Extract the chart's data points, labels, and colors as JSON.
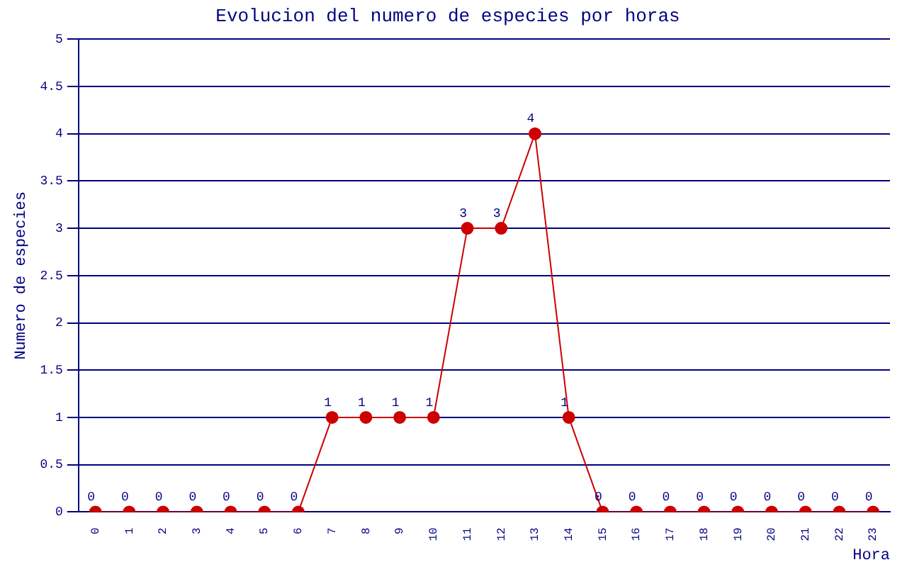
{
  "chart_data": {
    "type": "line",
    "title": "Evolucion del numero de especies por horas",
    "xlabel": "Hora",
    "ylabel": "Numero de especies",
    "categories": [
      "0",
      "1",
      "2",
      "3",
      "4",
      "5",
      "6",
      "7",
      "8",
      "9",
      "10",
      "11",
      "12",
      "13",
      "14",
      "15",
      "16",
      "17",
      "18",
      "19",
      "20",
      "21",
      "22",
      "23"
    ],
    "series": [
      {
        "color": "#cc0000",
        "values": [
          0,
          0,
          0,
          0,
          0,
          0,
          0,
          1,
          1,
          1,
          1,
          3,
          3,
          4,
          1,
          0,
          0,
          0,
          0,
          0,
          0,
          0,
          0,
          0
        ]
      }
    ],
    "ylim": [
      0,
      5
    ],
    "yticks": [
      0,
      0.5,
      1,
      1.5,
      2,
      2.5,
      3,
      3.5,
      4,
      4.5,
      5
    ],
    "grid": "y",
    "legend": false,
    "marker": "circle",
    "line_style": "solid",
    "data_labels": true
  }
}
